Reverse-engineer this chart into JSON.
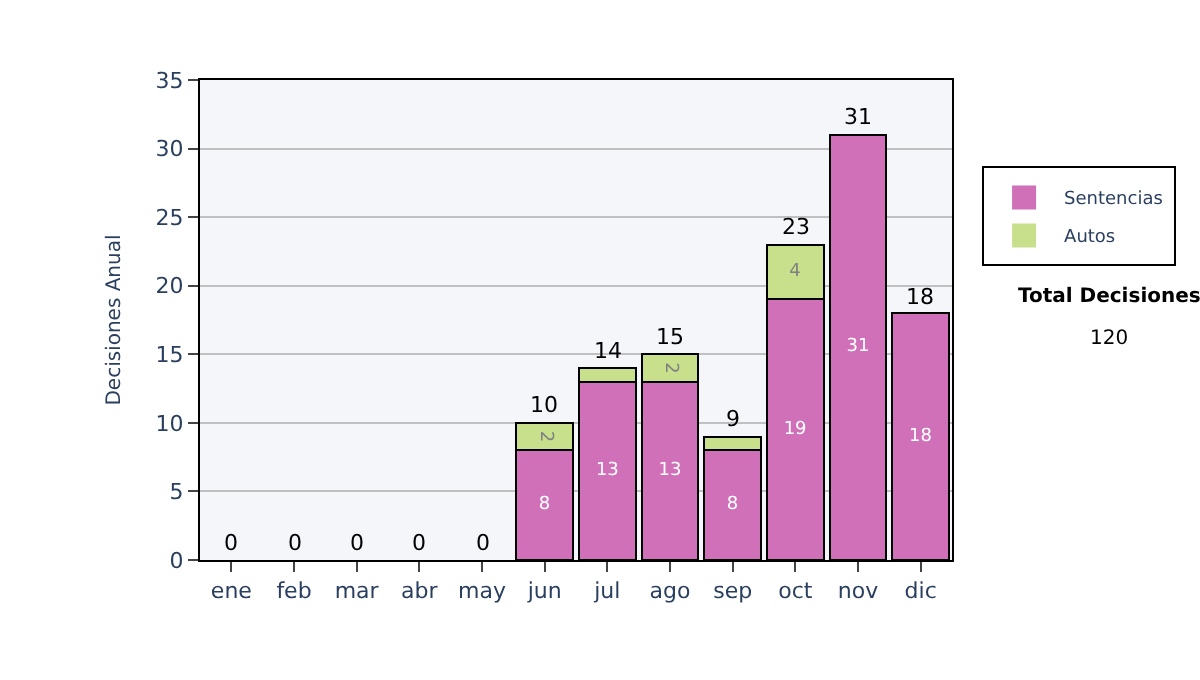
{
  "chart_data": {
    "type": "bar",
    "stacked": true,
    "ylabel": "Decisiones Anual",
    "categories": [
      "ene",
      "feb",
      "mar",
      "abr",
      "may",
      "jun",
      "jul",
      "ago",
      "sep",
      "oct",
      "nov",
      "dic"
    ],
    "series": [
      {
        "name": "Sentencias",
        "color": "#d070b8",
        "values": [
          0,
          0,
          0,
          0,
          0,
          8,
          13,
          13,
          8,
          19,
          31,
          18
        ],
        "value_labels": [
          null,
          null,
          null,
          null,
          null,
          "8",
          "13",
          "13",
          "8",
          "19",
          "31",
          "18"
        ]
      },
      {
        "name": "Autos",
        "color": "#c8e08c",
        "values": [
          0,
          0,
          0,
          0,
          0,
          2,
          1,
          2,
          1,
          4,
          0,
          0
        ],
        "value_labels": [
          null,
          null,
          null,
          null,
          null,
          "2",
          null,
          "2",
          null,
          "4",
          null,
          null
        ]
      }
    ],
    "totals": [
      "0",
      "0",
      "0",
      "0",
      "0",
      "10",
      "14",
      "15",
      "9",
      "23",
      "31",
      "18"
    ],
    "ylim": [
      0,
      35
    ],
    "yticks": [
      0,
      5,
      10,
      15,
      20,
      25,
      30,
      35
    ],
    "grid": "y",
    "legend": "right",
    "annotations": [
      "Total Decisiones",
      "120"
    ]
  }
}
